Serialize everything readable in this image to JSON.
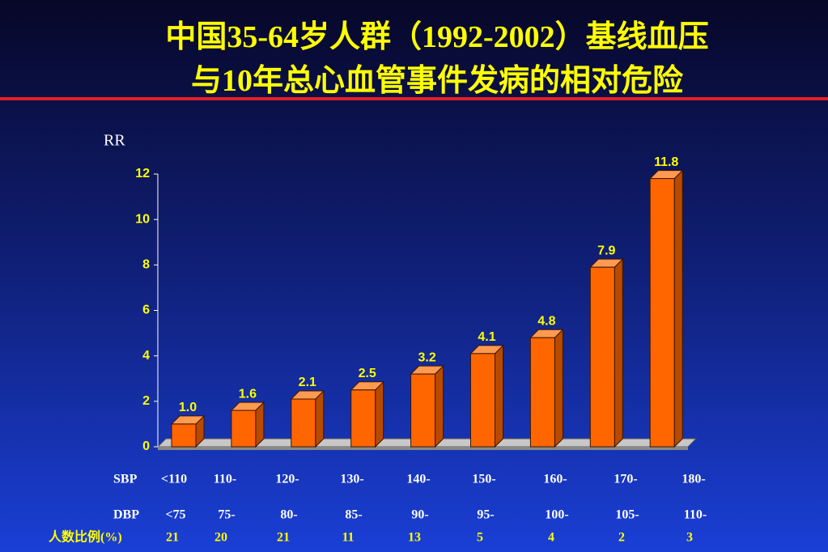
{
  "chart_data": {
    "type": "bar",
    "title": [
      "中国35-64岁人群（1992-2002）基线血压",
      "与10年总心血管事件发病的相对危险"
    ],
    "y_label": "RR",
    "categories": [
      "<110",
      "110-",
      "120-",
      "130-",
      "140-",
      "150-",
      "160-",
      "170-",
      "180-"
    ],
    "category_label": "SBP",
    "dbp": {
      "label": "DBP",
      "values": [
        "<75",
        "75-",
        "80-",
        "85-",
        "90-",
        "95-",
        "100-",
        "105-",
        "110-"
      ]
    },
    "proportion": {
      "label": "人数比例(%)",
      "values": [
        21,
        20,
        21,
        11,
        13,
        5,
        4,
        2,
        3
      ]
    },
    "values": [
      1.0,
      1.6,
      2.1,
      2.5,
      3.2,
      4.1,
      4.8,
      7.9,
      11.8
    ],
    "value_labels": [
      "1.0",
      "1.6",
      "2.1",
      "2.5",
      "3.2",
      "4.1",
      "4.8",
      "7.9",
      "11.8"
    ],
    "color": "#ff6600",
    "ylim": [
      0,
      12
    ],
    "yticks": [
      0,
      2,
      4,
      6,
      8,
      10,
      12
    ]
  }
}
